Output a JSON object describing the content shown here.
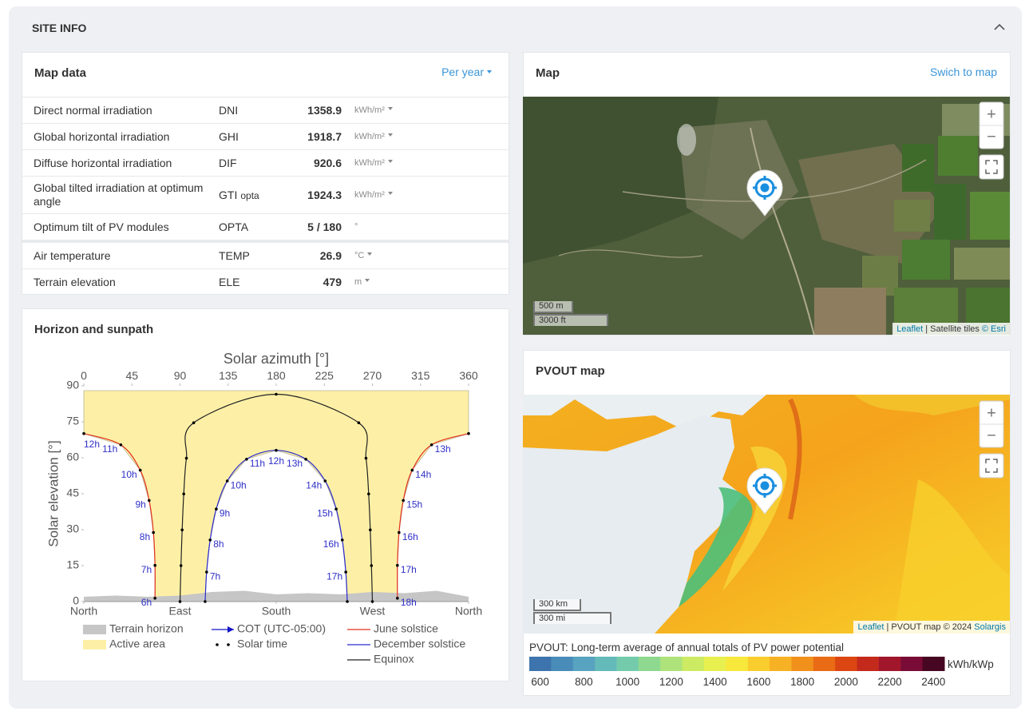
{
  "header": {
    "title": "SITE INFO"
  },
  "map_data": {
    "title": "Map data",
    "period": "Per year",
    "groups": [
      [
        {
          "label": "Direct normal irradiation",
          "abbr": "DNI",
          "value": 1358.9,
          "unit": "kWh/m²",
          "unit_selectable": true
        },
        {
          "label": "Global horizontal irradiation",
          "abbr": "GHI",
          "value": 1918.7,
          "unit": "kWh/m²",
          "unit_selectable": true
        },
        {
          "label": "Diffuse horizontal irradiation",
          "abbr": "DIF",
          "value": 920.6,
          "unit": "kWh/m²",
          "unit_selectable": true
        },
        {
          "label": "Global tilted irradiation at optimum angle",
          "abbr": "GTI",
          "abbr_sub": "opta",
          "value": 1924.3,
          "unit": "kWh/m²",
          "unit_selectable": true
        },
        {
          "label": "Optimum tilt of PV modules",
          "abbr": "OPTA",
          "value": "5 /  180",
          "unit": "°",
          "unit_selectable": false
        }
      ],
      [
        {
          "label": "Air temperature",
          "abbr": "TEMP",
          "value": 26.9,
          "unit": "°C",
          "unit_selectable": true
        },
        {
          "label": "Terrain elevation",
          "abbr": "ELE",
          "value": 479,
          "unit": "m",
          "unit_selectable": true
        }
      ]
    ]
  },
  "map": {
    "title": "Map",
    "link": "Swich to map",
    "zoom_in": "+",
    "zoom_out": "−",
    "scale": [
      "500 m",
      "3000 ft"
    ],
    "attribution": [
      "Leaflet",
      "| Satellite tiles",
      "© Esri"
    ]
  },
  "pvout_map": {
    "title": "PVOUT map",
    "zoom_in": "+",
    "zoom_out": "−",
    "scale": [
      "300 km",
      "300 mi"
    ],
    "attribution": [
      "Leaflet",
      "| PVOUT map © 2024",
      "Solargis"
    ],
    "legend": {
      "title": "PVOUT: Long-term average of annual totals of PV power potential",
      "unit": "kWh/kWp",
      "lim": [
        550,
        2450
      ],
      "ticks": [
        600,
        800,
        1000,
        1200,
        1400,
        1600,
        1800,
        2000,
        2200,
        2400
      ],
      "colors": [
        "#3d74ad",
        "#4a8cb9",
        "#58a3c0",
        "#64b9b9",
        "#74cbab",
        "#8ed98f",
        "#ade37a",
        "#cceb63",
        "#e8f04f",
        "#f8e83c",
        "#f9cd2e",
        "#f7b125",
        "#f2901c",
        "#ea6b15",
        "#dc4612",
        "#c42a1b",
        "#a1162b",
        "#790c36",
        "#470622"
      ]
    }
  },
  "horizon": {
    "title": "Horizon and sunpath"
  },
  "chart_data": {
    "type": "line",
    "title": "Solar azimuth [°]",
    "y_label": "Solar elevation [°]",
    "xlim": [
      0,
      360
    ],
    "ylim": [
      0,
      90
    ],
    "xticks": [
      0,
      45,
      90,
      135,
      180,
      225,
      270,
      315,
      360
    ],
    "yticks": [
      0,
      15,
      30,
      45,
      60,
      75,
      90
    ],
    "x_direction_ticks": [
      {
        "value": 0,
        "label": "North"
      },
      {
        "value": 90,
        "label": "East"
      },
      {
        "value": 180,
        "label": "South"
      },
      {
        "value": 270,
        "label": "West"
      },
      {
        "value": 360,
        "label": "North"
      }
    ],
    "label_color": "#2f2fc8",
    "terrain": {
      "name": "Terrain horizon",
      "color": "#c6c6c6",
      "x": [
        0,
        30,
        60,
        90,
        120,
        150,
        180,
        210,
        240,
        270,
        300,
        330,
        360
      ],
      "values": [
        2,
        2.5,
        2,
        2.5,
        4,
        4.5,
        3,
        3.5,
        3,
        4,
        3.5,
        4.5,
        2
      ]
    },
    "active_area": {
      "name": "Active area",
      "color": "#fdf0a6",
      "upper": 88
    },
    "series": [
      {
        "name": "June solstice",
        "color": "#e0301e",
        "x": [
          0,
          34.6,
          52.8,
          61.1,
          65.1,
          66.6,
          66.6,
          null,
          293.4,
          293.4,
          294.9,
          298.9,
          307.2,
          325.4,
          360
        ],
        "values": [
          70.1,
          65.4,
          54.8,
          42.2,
          28.8,
          15.1,
          1.4,
          null,
          1.4,
          15.1,
          28.8,
          42.2,
          54.8,
          65.4,
          70.1
        ],
        "point_labels": [
          "12h",
          "11h",
          "10h",
          "9h",
          "8h",
          "7h",
          "6h",
          null,
          "18h",
          "17h",
          "16h",
          "15h",
          "14h",
          "13h",
          null
        ]
      },
      {
        "name": "December solstice",
        "color": "#2a2ad0",
        "x": [
          113.5,
          114.9,
          118.2,
          123.9,
          134.2,
          152.3,
          180,
          207.7,
          225.8,
          236.1,
          241.8,
          245.1,
          246.5
        ],
        "values": [
          0,
          12.3,
          25.7,
          38.6,
          50.3,
          59.4,
          63.1,
          59.4,
          50.3,
          38.6,
          25.7,
          12.3,
          0
        ],
        "point_labels": [
          null,
          "7h",
          "8h",
          "9h",
          "10h",
          "11h",
          "12h",
          "13h",
          "14h",
          "15h",
          "16h",
          "17h",
          null
        ]
      },
      {
        "name": "Equinox",
        "color": "#222222",
        "x": [
          90,
          90.9,
          92,
          93.5,
          96,
          102.8,
          180,
          257.2,
          264,
          266.5,
          268,
          269.1,
          270
        ],
        "values": [
          0,
          15,
          29.9,
          44.9,
          59.8,
          74.6,
          86.5,
          74.6,
          59.8,
          44.9,
          29.9,
          15,
          0
        ]
      }
    ],
    "legend_extra": [
      {
        "name": "COT (UTC-05:00)",
        "color": "#1515c8"
      },
      {
        "name": "Solar time",
        "color": "#000000"
      }
    ]
  }
}
